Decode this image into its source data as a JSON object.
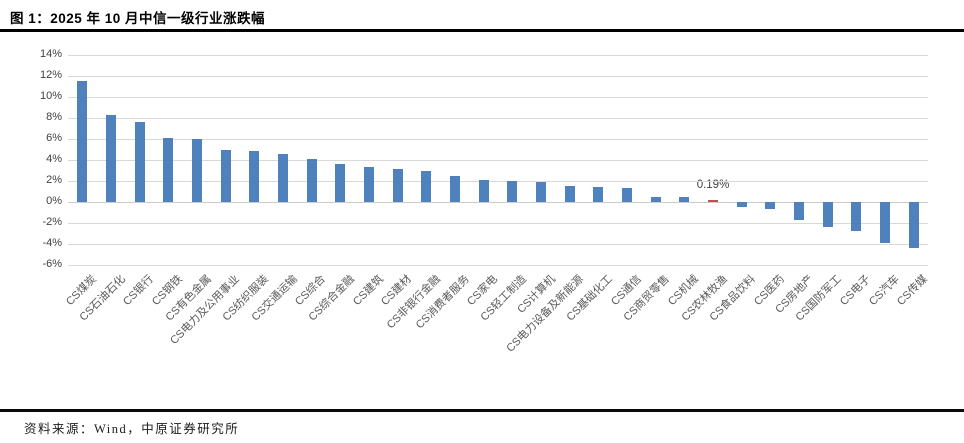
{
  "figure": {
    "title": "图 1：2025 年 10 月中信一级行业涨跌幅",
    "source": "资料来源：Wind，中原证券研究所"
  },
  "chart_data": {
    "type": "bar",
    "title": "2025 年 10 月中信一级行业涨跌幅",
    "xlabel": "",
    "ylabel": "",
    "categories": [
      "CS煤炭",
      "CS石油石化",
      "CS银行",
      "CS钢铁",
      "CS有色金属",
      "CS电力及公用事业",
      "CS纺织服装",
      "CS交通运输",
      "CS综合",
      "CS综合金融",
      "CS建筑",
      "CS建材",
      "CS非银行金融",
      "CS消费者服务",
      "CS家电",
      "CS轻工制造",
      "CS计算机",
      "CS电力设备及新能源",
      "CS基础化工",
      "CS通信",
      "CS商贸零售",
      "CS机械",
      "CS农林牧渔",
      "CS食品饮料",
      "CS医药",
      "CS房地产",
      "CS国防军工",
      "CS电子",
      "CS汽车",
      "CS传媒"
    ],
    "values": [
      11.5,
      8.3,
      7.6,
      6.1,
      6.0,
      5.0,
      4.9,
      4.6,
      4.1,
      3.6,
      3.3,
      3.1,
      3.0,
      2.5,
      2.1,
      2.0,
      1.9,
      1.5,
      1.4,
      1.3,
      0.5,
      0.5,
      0.19,
      -0.5,
      -0.7,
      -1.7,
      -2.4,
      -2.8,
      -3.9,
      -4.4
    ],
    "unit": "%",
    "highlight": {
      "index": 22,
      "value": 0.19,
      "label": "0.19%",
      "category": "CS农林牧渔"
    },
    "ylim": [
      -6,
      14
    ],
    "ytick_values": [
      14,
      12,
      10,
      8,
      6,
      4,
      2,
      0,
      -2,
      -4,
      -6
    ],
    "ytick_labels": [
      "14%",
      "12%",
      "10%",
      "8%",
      "6%",
      "4%",
      "2%",
      "0%",
      "-2%",
      "-4%",
      "-6%"
    ],
    "grid": true,
    "legend": false,
    "xtick_rotation_deg": 45,
    "colors": {
      "bar": "#4f81bd",
      "highlight": "#c0504d",
      "gridline": "#d9d9d9",
      "axis_line": "#cccccc",
      "ytick_text": "#404040",
      "xtick_text": "#595959",
      "data_label_text": "#404040",
      "title_text": "#000000",
      "rule": "#000000"
    }
  }
}
